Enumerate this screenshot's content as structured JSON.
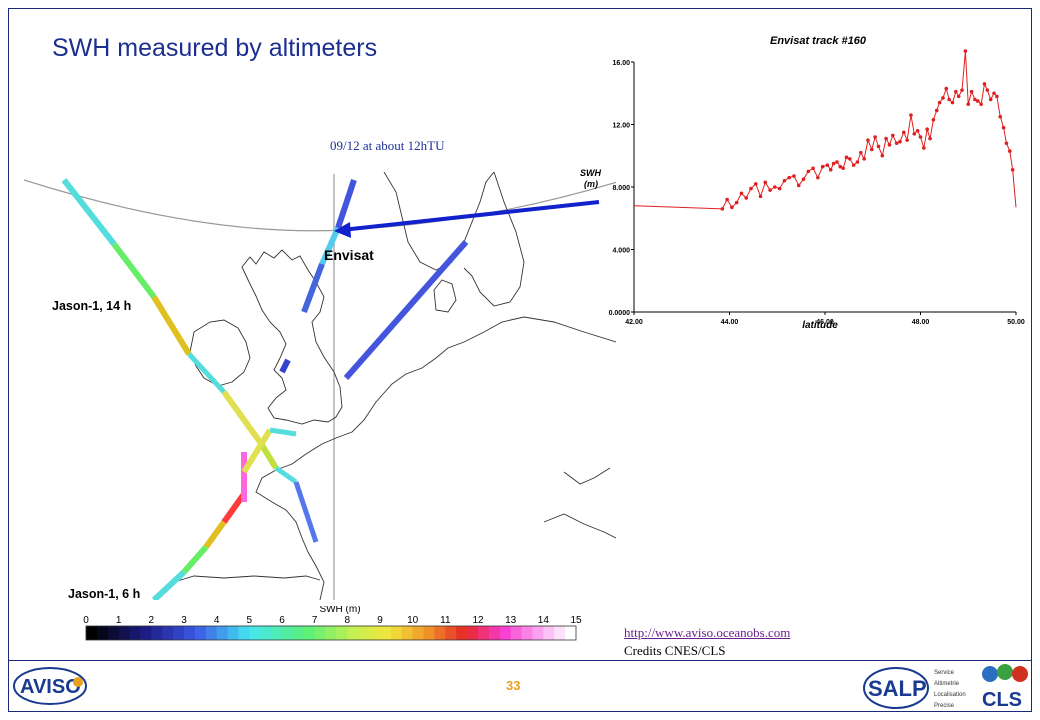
{
  "slide": {
    "title": "SWH measured by altimeters",
    "annotation": "09/12 at about 12hTU",
    "link": "http://www.aviso.oceanobs.com",
    "credits": "Credits CNES/CLS",
    "page_number": "33"
  },
  "map": {
    "labels": {
      "jason14": "Jason-1, 14 h",
      "jason6": "Jason-1, 6 h",
      "envisat": "Envisat",
      "swh_unit": "SWH\n(m)"
    },
    "colorbar": {
      "title": "SWH  (m)",
      "ticks": [
        "0",
        "1",
        "2",
        "3",
        "4",
        "5",
        "6",
        "7",
        "8",
        "9",
        "10",
        "11",
        "12",
        "13",
        "14",
        "15"
      ]
    }
  },
  "logos": {
    "aviso": "AVISO",
    "salp": "SALP",
    "salp_words": [
      "Service",
      "Altimetrie",
      "Localisation",
      "Precise"
    ],
    "cls": "CLS"
  },
  "chart_data": {
    "type": "line",
    "title": "Envisat track #160",
    "xlabel": "latitude",
    "ylabel": "SWH (m)",
    "xlim": [
      42,
      50
    ],
    "ylim": [
      0,
      16
    ],
    "xticks": [
      "42.00",
      "44.00",
      "46.00",
      "48.00",
      "50.00"
    ],
    "yticks": [
      "0.0000",
      "4.000",
      "8.000",
      "12.00",
      "16.00"
    ],
    "color": "#e02020",
    "series": [
      {
        "x": [
          42.0,
          43.85,
          43.95,
          44.05,
          44.15,
          44.25,
          44.35,
          44.45,
          44.55,
          44.65,
          44.75,
          44.85,
          44.95,
          45.05,
          45.15,
          45.25,
          45.35,
          45.45,
          45.55,
          45.65,
          45.75,
          45.85,
          45.95,
          46.05,
          46.12,
          46.18,
          46.25,
          46.32,
          46.38,
          46.45,
          46.52,
          46.6,
          46.68,
          46.75,
          46.82,
          46.9,
          46.98,
          47.05,
          47.12,
          47.2,
          47.28,
          47.35,
          47.42,
          47.5,
          47.57,
          47.65,
          47.72,
          47.8,
          47.87,
          47.94,
          48.0,
          48.07,
          48.14,
          48.2,
          48.27,
          48.34,
          48.4,
          48.47,
          48.54,
          48.6,
          48.67,
          48.74,
          48.8,
          48.87,
          48.94,
          49.0,
          49.07,
          49.14,
          49.2,
          49.27,
          49.34,
          49.4,
          49.47,
          49.54,
          49.6,
          49.67,
          49.74,
          49.8,
          49.87,
          49.93,
          50.0
        ],
        "y": [
          6.8,
          6.6,
          7.2,
          6.7,
          7.0,
          7.6,
          7.3,
          7.9,
          8.2,
          7.4,
          8.3,
          7.8,
          8.0,
          7.9,
          8.4,
          8.6,
          8.7,
          8.1,
          8.5,
          9.0,
          9.2,
          8.6,
          9.3,
          9.4,
          9.1,
          9.5,
          9.6,
          9.3,
          9.2,
          9.9,
          9.8,
          9.4,
          9.6,
          10.2,
          9.8,
          11.0,
          10.4,
          11.2,
          10.6,
          10.0,
          11.1,
          10.7,
          11.3,
          10.8,
          10.9,
          11.5,
          11.0,
          12.6,
          11.4,
          11.6,
          11.2,
          10.5,
          11.7,
          11.1,
          12.3,
          12.9,
          13.4,
          13.7,
          14.3,
          13.6,
          13.4,
          14.1,
          13.8,
          14.2,
          16.7,
          13.3,
          14.1,
          13.6,
          13.5,
          13.3,
          14.6,
          14.2,
          13.6,
          14.0,
          13.8,
          12.5,
          11.8,
          10.8,
          10.3,
          9.1,
          6.7
        ]
      }
    ]
  }
}
